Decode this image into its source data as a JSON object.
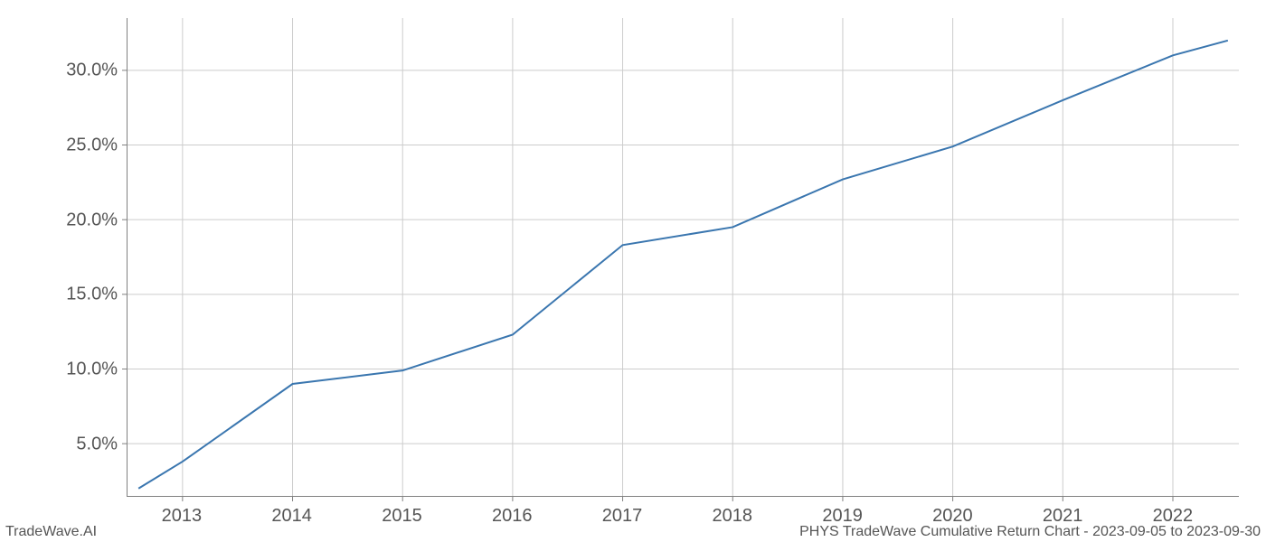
{
  "chart": {
    "type": "line",
    "x_values": [
      2012.6,
      2013,
      2014,
      2015,
      2016,
      2017,
      2018,
      2019,
      2020,
      2021,
      2022,
      2022.5
    ],
    "y_values": [
      2.0,
      3.8,
      9.0,
      9.9,
      12.3,
      18.3,
      19.5,
      22.7,
      24.9,
      28.0,
      31.0,
      32.0
    ],
    "x_ticks": [
      2013,
      2014,
      2015,
      2016,
      2017,
      2018,
      2019,
      2020,
      2021,
      2022
    ],
    "x_tick_labels": [
      "2013",
      "2014",
      "2015",
      "2016",
      "2017",
      "2018",
      "2019",
      "2020",
      "2021",
      "2022"
    ],
    "y_ticks": [
      5,
      10,
      15,
      20,
      25,
      30
    ],
    "y_tick_labels": [
      "5.0%",
      "10.0%",
      "15.0%",
      "20.0%",
      "25.0%",
      "30.0%"
    ],
    "xlim": [
      2012.5,
      2022.6
    ],
    "ylim": [
      1.5,
      33.5
    ],
    "line_color": "#3a76af",
    "line_width": 2,
    "grid_color": "#cccccc",
    "axis_color": "#808080",
    "background_color": "#ffffff",
    "tick_label_color": "#555555",
    "tick_label_fontsize": 20,
    "footer_fontsize": 16,
    "footer_color": "#555555"
  },
  "footer": {
    "left": "TradeWave.AI",
    "right": "PHYS TradeWave Cumulative Return Chart - 2023-09-05 to 2023-09-30"
  }
}
